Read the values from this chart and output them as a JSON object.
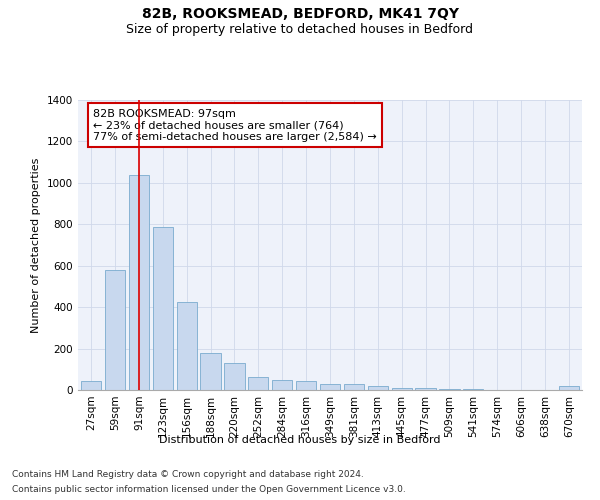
{
  "title": "82B, ROOKSMEAD, BEDFORD, MK41 7QY",
  "subtitle": "Size of property relative to detached houses in Bedford",
  "xlabel": "Distribution of detached houses by size in Bedford",
  "ylabel": "Number of detached properties",
  "categories": [
    "27sqm",
    "59sqm",
    "91sqm",
    "123sqm",
    "156sqm",
    "188sqm",
    "220sqm",
    "252sqm",
    "284sqm",
    "316sqm",
    "349sqm",
    "381sqm",
    "413sqm",
    "445sqm",
    "477sqm",
    "509sqm",
    "541sqm",
    "574sqm",
    "606sqm",
    "638sqm",
    "670sqm"
  ],
  "values": [
    45,
    578,
    1040,
    785,
    425,
    178,
    128,
    62,
    48,
    45,
    28,
    27,
    18,
    10,
    11,
    5,
    3,
    2,
    2,
    1,
    20
  ],
  "bar_color": "#c8d8ee",
  "bar_edge_color": "#7aabcf",
  "vline_x_index": 2,
  "vline_color": "#dd0000",
  "annotation_text": "82B ROOKSMEAD: 97sqm\n← 23% of detached houses are smaller (764)\n77% of semi-detached houses are larger (2,584) →",
  "annotation_box_facecolor": "#ffffff",
  "annotation_border_color": "#cc0000",
  "ylim": [
    0,
    1400
  ],
  "yticks": [
    0,
    200,
    400,
    600,
    800,
    1000,
    1200,
    1400
  ],
  "grid_color": "#d0d8ea",
  "background_color": "#eef2fa",
  "footer_line1": "Contains HM Land Registry data © Crown copyright and database right 2024.",
  "footer_line2": "Contains public sector information licensed under the Open Government Licence v3.0.",
  "title_fontsize": 10,
  "subtitle_fontsize": 9,
  "axis_label_fontsize": 8,
  "tick_fontsize": 7.5,
  "annotation_fontsize": 8,
  "footer_fontsize": 6.5
}
